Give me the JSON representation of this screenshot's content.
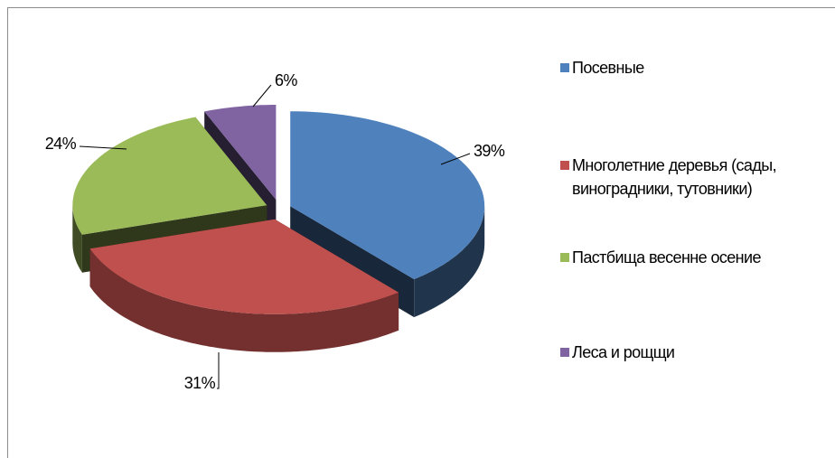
{
  "chart_data": {
    "type": "pie",
    "categories": [
      "Посевные",
      "Многолетние деревья (сады, виноградники, тутовники)",
      "Пастбища весенне осение",
      "Леса и рощщи"
    ],
    "values": [
      39,
      31,
      24,
      6
    ],
    "value_labels": [
      "39%",
      "31%",
      "24%",
      "6%"
    ],
    "colors": [
      "#4f81bd",
      "#c0504d",
      "#9bbb59",
      "#8064a2"
    ],
    "legend": "right"
  }
}
